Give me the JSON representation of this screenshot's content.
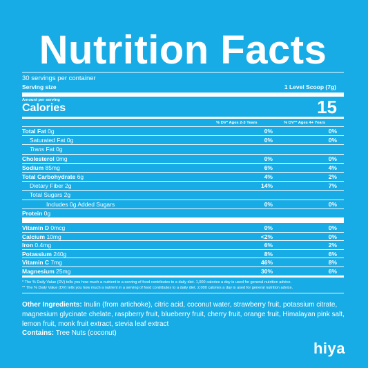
{
  "title": "Nutrition Facts",
  "servings_per_container": "30 servings per container",
  "serving_size": {
    "label": "Serving size",
    "value": "1 Level Scoop (7g)"
  },
  "amount_per_serving": "Amount per serving",
  "calories": {
    "label": "Calories",
    "value": "15"
  },
  "dv_headers": [
    "% DV* Ages 2-3 Years",
    "% DV** Ages 4+ Years"
  ],
  "nutrients": [
    {
      "name": "Total Fat",
      "amount": "0g",
      "bold": true,
      "indent": 0,
      "dv1": "0%",
      "dv2": "0%"
    },
    {
      "name": "Saturated Fat",
      "amount": "0g",
      "bold": false,
      "indent": 1,
      "dv1": "0%",
      "dv2": "0%"
    },
    {
      "name": "Trans",
      "amount": "Fat 0g",
      "bold": false,
      "italic_name": true,
      "indent": 1,
      "dv1": "",
      "dv2": ""
    },
    {
      "name": "Cholesterol",
      "amount": "0mg",
      "bold": true,
      "indent": 0,
      "dv1": "0%",
      "dv2": "0%"
    },
    {
      "name": "Sodium",
      "amount": "85mg",
      "bold": true,
      "indent": 0,
      "dv1": "6%",
      "dv2": "4%"
    },
    {
      "name": "Total Carbohydrate",
      "amount": "6g",
      "bold": true,
      "indent": 0,
      "dv1": "4%",
      "dv2": "2%"
    },
    {
      "name": "Dietary Fiber",
      "amount": "2g",
      "bold": false,
      "indent": 1,
      "dv1": "14%",
      "dv2": "7%"
    },
    {
      "name": "Total Sugars",
      "amount": "2g",
      "bold": false,
      "indent": 1,
      "dv1": "",
      "dv2": ""
    },
    {
      "name": "Includes 0g Added Sugars",
      "amount": "",
      "bold": false,
      "indent": 2,
      "dv1": "0%",
      "dv2": "0%"
    },
    {
      "name": "Protein",
      "amount": "0g",
      "bold": true,
      "indent": 0,
      "dv1": "",
      "dv2": ""
    }
  ],
  "vitamins": [
    {
      "name": "Vitamin D",
      "amount": "0mcg",
      "dv1": "0%",
      "dv2": "0%"
    },
    {
      "name": "Calcium",
      "amount": "10mg",
      "dv1": "<2%",
      "dv2": "0%"
    },
    {
      "name": "Iron",
      "amount": "0.4mg",
      "dv1": "6%",
      "dv2": "2%"
    },
    {
      "name": "Potassium",
      "amount": "240g",
      "dv1": "8%",
      "dv2": "6%"
    },
    {
      "name": "Vitamin C",
      "amount": "7mg",
      "dv1": "46%",
      "dv2": "8%"
    },
    {
      "name": "Magnesium",
      "amount": "25mg",
      "dv1": "30%",
      "dv2": "6%"
    }
  ],
  "footnotes": [
    "* The % Daily Value (DV) tells you how much a nutrient in a serving of food contributes to a daily diet. 1,000 calories a day is used for general nutrition advice.",
    "** The % Daily Value (DV) tells you how much a nutrient in a serving of food contributes to a daily diet. 2,000 calories a day is used for general nutrition advice."
  ],
  "other_ingredients": {
    "label": "Other Ingredients:",
    "text": "Inulin (from artichoke), citric acid, coconut water, strawberry fruit, potassium citrate, magnesium glycinate chelate, raspberry fruit, blueberry fruit, cherry fruit, orange fruit, Himalayan pink salt, lemon fruit, monk fruit extract, stevia leaf extract"
  },
  "contains": {
    "label": "Contains:",
    "text": "Tree Nuts (coconut)"
  },
  "brand": "hiya",
  "colors": {
    "background": "#17ace6",
    "foreground": "#ffffff"
  }
}
